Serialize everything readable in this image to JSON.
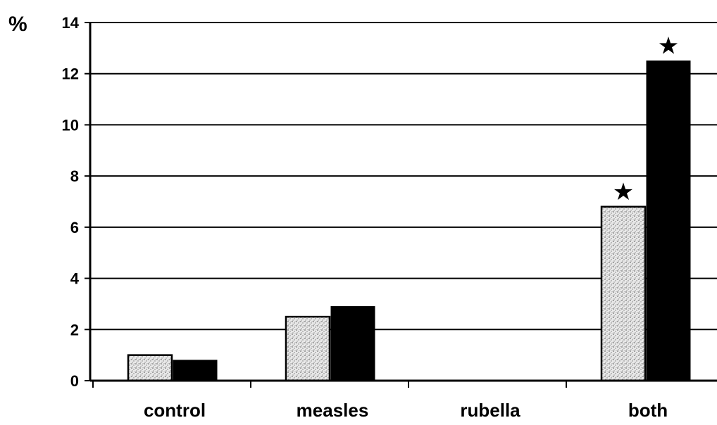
{
  "chart_data": {
    "type": "bar",
    "ylabel": "%",
    "ylim": [
      0,
      14
    ],
    "yticks": [
      "0",
      "2",
      "4",
      "6",
      "8",
      "10",
      "12",
      "14"
    ],
    "grid": true,
    "categories": [
      "control",
      "measles",
      "rubella",
      "both"
    ],
    "series": [
      {
        "values": [
          1.0,
          2.5,
          0,
          6.8
        ],
        "fill": "stippled-grey"
      },
      {
        "values": [
          0.8,
          2.9,
          0,
          12.5
        ],
        "fill": "#000000"
      }
    ],
    "annotations": [
      {
        "category": "both",
        "series_index": 0,
        "text": "★"
      },
      {
        "category": "both",
        "series_index": 1,
        "text": "★"
      }
    ]
  }
}
